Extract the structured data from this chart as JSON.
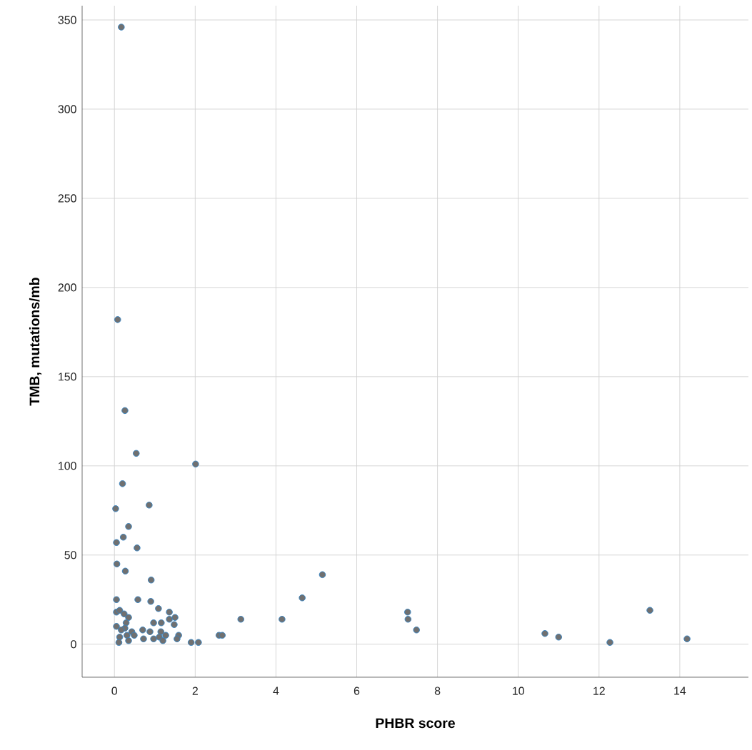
{
  "chart_data": {
    "type": "scatter",
    "xlabel": "PHBR score",
    "ylabel": "TMB, mutations/mb",
    "xlim": [
      -0.8,
      15.7
    ],
    "ylim": [
      -18.5,
      358
    ],
    "xticks": [
      0,
      2,
      4,
      6,
      8,
      10,
      12,
      14
    ],
    "yticks": [
      0,
      50,
      100,
      150,
      200,
      250,
      300,
      350
    ],
    "grid": true,
    "marker": "circle",
    "series": [
      {
        "color": "#707070",
        "x": [
          0.17,
          0.08,
          0.26,
          0.54,
          2.01,
          0.2,
          0.03,
          0.86,
          0.35,
          0.22,
          0.05,
          0.56,
          0.06,
          0.27,
          0.91,
          0.05,
          0.58,
          0.9,
          1.09,
          1.36,
          1.5,
          1.36,
          1.48,
          0.05,
          0.13,
          0.24,
          0.35,
          0.29,
          0.05,
          0.26,
          0.97,
          1.16,
          0.17,
          0.43,
          0.7,
          0.88,
          1.15,
          0.31,
          0.49,
          1.27,
          1.59,
          0.13,
          0.72,
          0.97,
          1.11,
          1.55,
          1.2,
          0.11,
          0.35,
          1.9,
          2.08,
          2.59,
          2.67,
          3.13,
          4.15,
          4.65,
          5.15,
          7.26,
          7.27,
          7.48,
          10.66,
          11.0,
          12.27,
          13.26,
          14.18
        ],
        "values": [
          346,
          182,
          131,
          107,
          101,
          90,
          76,
          78,
          66,
          60,
          57,
          54,
          45,
          41,
          36,
          25,
          25,
          24,
          20,
          18,
          15,
          14,
          11,
          18,
          19,
          17,
          15,
          12,
          10,
          9,
          12,
          12,
          8,
          7,
          8,
          7,
          7,
          5,
          5,
          5,
          5,
          4,
          3,
          3,
          4,
          3,
          2,
          1,
          2,
          1,
          1,
          5,
          5,
          14,
          14,
          26,
          39,
          18,
          14,
          8,
          6,
          4,
          1,
          19,
          3
        ]
      }
    ]
  }
}
